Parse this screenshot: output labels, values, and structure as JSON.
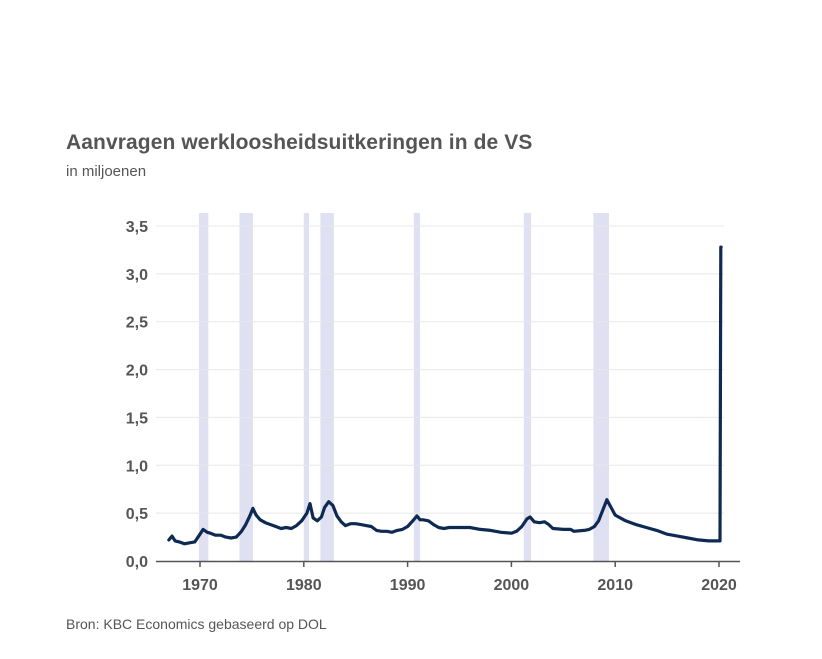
{
  "chart_data": {
    "type": "line",
    "title": "Aanvragen werkloosheidsuitkeringen in de VS",
    "subtitle": "in miljoenen",
    "source": "Bron: KBC Economics gebaseerd op DOL",
    "xlim": [
      1967,
      2020.25
    ],
    "ylim": [
      0,
      3.5
    ],
    "x_ticks": [
      1970,
      1980,
      1990,
      2000,
      2010,
      2020
    ],
    "y_ticks": [
      0,
      0.5,
      1,
      1.5,
      2,
      2.5,
      3,
      3.5
    ],
    "y_tick_labels": [
      "0,0",
      "0,5",
      "1,0",
      "1,5",
      "2,0",
      "2,5",
      "3,0",
      "3,5"
    ],
    "grid": true,
    "colors": {
      "line": "#0e2a52",
      "recession": "#dfe0f2",
      "grid": "#e8e8e8",
      "axis": "#555555"
    },
    "recessions": [
      [
        1969.9,
        1970.8
      ],
      [
        1973.8,
        1975.1
      ],
      [
        1980.0,
        1980.5
      ],
      [
        1981.6,
        1982.9
      ],
      [
        1990.6,
        1991.2
      ],
      [
        2001.2,
        2001.9
      ],
      [
        2007.9,
        2009.4
      ]
    ],
    "series": [
      {
        "x": [
          1967.0,
          1967.3,
          1967.6,
          1968.0,
          1968.5,
          1969.0,
          1969.5,
          1970.0,
          1970.3,
          1970.7,
          1971.0,
          1971.5,
          1972.0,
          1972.5,
          1973.0,
          1973.5,
          1974.0,
          1974.4,
          1974.8,
          1975.1,
          1975.4,
          1975.8,
          1976.3,
          1976.8,
          1977.3,
          1977.8,
          1978.3,
          1978.8,
          1979.3,
          1979.8,
          1980.3,
          1980.6,
          1980.9,
          1981.3,
          1981.7,
          1982.0,
          1982.4,
          1982.8,
          1983.2,
          1983.6,
          1984.0,
          1984.5,
          1985.0,
          1985.5,
          1986.0,
          1986.5,
          1987.0,
          1987.5,
          1988.0,
          1988.5,
          1989.0,
          1989.5,
          1990.0,
          1990.5,
          1990.9,
          1991.2,
          1991.5,
          1992.0,
          1992.5,
          1993.0,
          1993.5,
          1994.0,
          1995.0,
          1996.0,
          1997.0,
          1998.0,
          1999.0,
          2000.0,
          2000.5,
          2001.0,
          2001.5,
          2001.8,
          2002.2,
          2002.7,
          2003.2,
          2003.6,
          2004.0,
          2005.0,
          2005.7,
          2006.0,
          2007.0,
          2007.5,
          2008.0,
          2008.4,
          2008.8,
          2009.2,
          2009.5,
          2010.0,
          2011.0,
          2012.0,
          2013.0,
          2014.0,
          2015.0,
          2016.0,
          2017.0,
          2018.0,
          2019.0,
          2019.6,
          2020.0,
          2020.1,
          2020.17,
          2020.2
        ],
        "values": [
          0.22,
          0.26,
          0.21,
          0.2,
          0.18,
          0.19,
          0.2,
          0.28,
          0.33,
          0.3,
          0.29,
          0.27,
          0.27,
          0.25,
          0.24,
          0.25,
          0.31,
          0.38,
          0.47,
          0.55,
          0.48,
          0.43,
          0.4,
          0.38,
          0.36,
          0.34,
          0.35,
          0.34,
          0.37,
          0.42,
          0.5,
          0.6,
          0.45,
          0.42,
          0.46,
          0.56,
          0.62,
          0.58,
          0.47,
          0.41,
          0.37,
          0.39,
          0.39,
          0.38,
          0.37,
          0.36,
          0.32,
          0.31,
          0.31,
          0.3,
          0.32,
          0.33,
          0.36,
          0.42,
          0.47,
          0.43,
          0.43,
          0.42,
          0.38,
          0.35,
          0.34,
          0.35,
          0.35,
          0.35,
          0.33,
          0.32,
          0.3,
          0.29,
          0.31,
          0.36,
          0.44,
          0.46,
          0.41,
          0.4,
          0.41,
          0.38,
          0.34,
          0.33,
          0.33,
          0.31,
          0.32,
          0.33,
          0.36,
          0.42,
          0.53,
          0.64,
          0.58,
          0.48,
          0.42,
          0.38,
          0.35,
          0.32,
          0.28,
          0.26,
          0.24,
          0.22,
          0.21,
          0.21,
          0.21,
          0.21,
          3.28,
          3.28
        ]
      }
    ]
  }
}
